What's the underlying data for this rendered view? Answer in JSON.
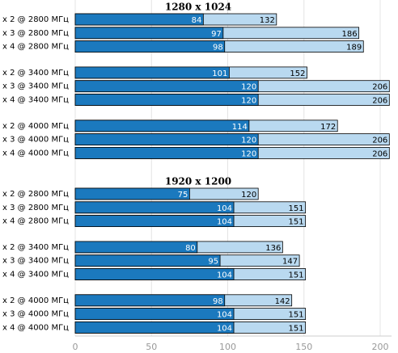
{
  "chart_data": [
    {
      "type": "bar",
      "title": "1280 x 1024",
      "categories": [
        "x 2 @ 2800 МГц",
        "x 3 @ 2800 МГц",
        "x 4 @ 2800 МГц",
        "x 2 @ 3400 МГц",
        "x 3 @ 3400 МГц",
        "x 4 @ 3400 МГц",
        "x 2 @ 4000 МГц",
        "x 3 @ 4000 МГц",
        "x 4 @ 4000 МГц"
      ],
      "series": [
        {
          "color": "#b9d9f0",
          "values": [
            132,
            186,
            189,
            152,
            206,
            206,
            172,
            206,
            206
          ]
        },
        {
          "color": "#1b79be",
          "values": [
            84,
            97,
            98,
            101,
            120,
            120,
            114,
            120,
            120
          ]
        }
      ],
      "xlim": [
        0,
        200
      ]
    },
    {
      "type": "bar",
      "title": "1920 x 1200",
      "categories": [
        "x 2 @ 2800 МГц",
        "x 3 @ 2800 МГц",
        "x 4 @ 2800 МГц",
        "x 2 @ 3400 МГц",
        "x 3 @ 3400 МГц",
        "x 4 @ 3400 МГц",
        "x 2 @ 4000 МГц",
        "x 3 @ 4000 МГц",
        "x 4 @ 4000 МГц"
      ],
      "series": [
        {
          "color": "#b9d9f0",
          "values": [
            120,
            151,
            151,
            136,
            147,
            151,
            142,
            151,
            151
          ]
        },
        {
          "color": "#1b79be",
          "values": [
            75,
            104,
            104,
            80,
            95,
            104,
            98,
            104,
            104
          ]
        }
      ],
      "xlim": [
        0,
        200
      ],
      "xticks": [
        0,
        50,
        100,
        150,
        200
      ],
      "grid": true
    }
  ]
}
